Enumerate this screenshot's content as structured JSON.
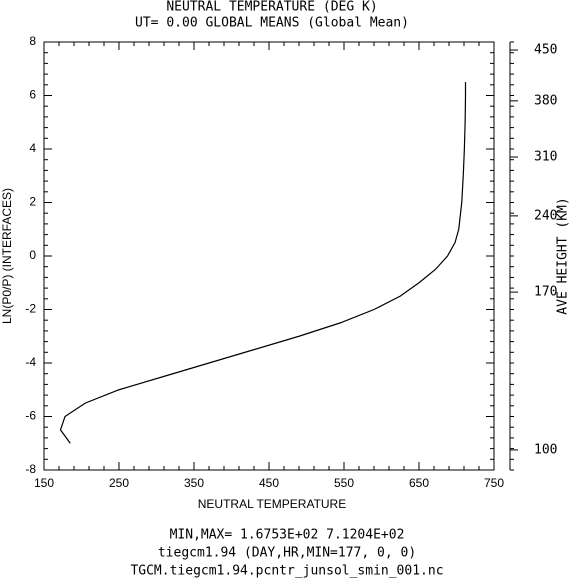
{
  "chart_data": {
    "type": "line",
    "title": "NEUTRAL TEMPERATURE (DEG K)",
    "subtitle": "UT= 0.00 GLOBAL MEANS (Global Mean)",
    "x_label": "NEUTRAL TEMPERATURE",
    "y_label": "LN(P0/P) (INTERFACES)",
    "y2_label": "AVE HEIGHT (KM)",
    "footer": [
      "MIN,MAX=  1.6753E+02  7.1204E+02",
      "tiegcm1.94 (DAY,HR,MIN=177, 0, 0)",
      "TGCM.tiegcm1.94.pcntr_junsol_smin_001.nc"
    ],
    "xlim": [
      150,
      750
    ],
    "xticks": [
      150,
      250,
      350,
      450,
      550,
      650,
      750
    ],
    "ylim": [
      -8,
      8
    ],
    "yticks": [
      -8,
      -6,
      -4,
      -2,
      0,
      2,
      4,
      6,
      8
    ],
    "y2ticks": [
      100,
      170,
      240,
      310,
      380,
      450
    ],
    "y2_ticks_at_y": [
      -7.25,
      -1.35,
      1.5,
      3.7,
      5.8,
      7.7
    ],
    "series": [
      {
        "name": "NEUTRAL TEMPERATURE",
        "color": "#000000",
        "x": [
          185,
          172,
          178,
          205,
          250,
          310,
          370,
          430,
          490,
          545,
          590,
          625,
          650,
          672,
          688,
          698,
          703,
          707,
          709,
          710.5,
          711.5,
          712,
          712
        ],
        "values": [
          -7,
          -6.5,
          -6,
          -5.5,
          -5,
          -4.5,
          -4,
          -3.5,
          -3,
          -2.5,
          -2,
          -1.5,
          -1,
          -0.5,
          0,
          0.5,
          1,
          2,
          3,
          4,
          5,
          6,
          6.5
        ]
      }
    ]
  }
}
